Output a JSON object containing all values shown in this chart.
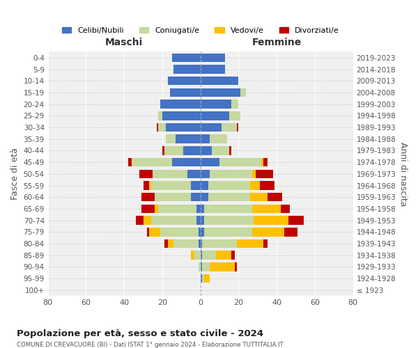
{
  "age_groups": [
    "100+",
    "95-99",
    "90-94",
    "85-89",
    "80-84",
    "75-79",
    "70-74",
    "65-69",
    "60-64",
    "55-59",
    "50-54",
    "45-49",
    "40-44",
    "35-39",
    "30-34",
    "25-29",
    "20-24",
    "15-19",
    "10-14",
    "5-9",
    "0-4"
  ],
  "birth_years": [
    "≤ 1923",
    "1924-1928",
    "1929-1933",
    "1934-1938",
    "1939-1943",
    "1944-1948",
    "1949-1953",
    "1954-1958",
    "1959-1963",
    "1964-1968",
    "1969-1973",
    "1974-1978",
    "1979-1983",
    "1984-1988",
    "1989-1993",
    "1994-1998",
    "1999-2003",
    "2004-2008",
    "2009-2013",
    "2014-2018",
    "2019-2023"
  ],
  "colors": {
    "celibi": "#4472c4",
    "coniugati": "#c5d9a0",
    "vedovi": "#ffc000",
    "divorziati": "#c00000"
  },
  "maschi": {
    "celibi": [
      0,
      0,
      0,
      0,
      1,
      1,
      2,
      2,
      5,
      5,
      7,
      15,
      9,
      13,
      18,
      20,
      21,
      16,
      17,
      14,
      15
    ],
    "coniugati": [
      0,
      0,
      1,
      3,
      13,
      20,
      24,
      20,
      19,
      21,
      18,
      21,
      10,
      5,
      4,
      2,
      0,
      0,
      0,
      0,
      0
    ],
    "vedovi": [
      0,
      0,
      0,
      2,
      3,
      6,
      4,
      2,
      0,
      1,
      0,
      0,
      0,
      0,
      0,
      0,
      0,
      0,
      0,
      0,
      0
    ],
    "divorziati": [
      0,
      0,
      0,
      0,
      2,
      1,
      4,
      7,
      7,
      3,
      7,
      2,
      1,
      0,
      1,
      0,
      0,
      0,
      0,
      0,
      0
    ]
  },
  "femmine": {
    "celibi": [
      0,
      1,
      1,
      1,
      1,
      2,
      2,
      2,
      4,
      4,
      5,
      10,
      6,
      5,
      11,
      15,
      16,
      21,
      20,
      13,
      13
    ],
    "coniugati": [
      0,
      1,
      4,
      7,
      18,
      25,
      26,
      25,
      22,
      22,
      22,
      22,
      9,
      9,
      8,
      6,
      4,
      3,
      0,
      0,
      0
    ],
    "vedovi": [
      0,
      3,
      13,
      8,
      14,
      17,
      18,
      15,
      9,
      5,
      2,
      1,
      0,
      0,
      0,
      0,
      0,
      0,
      0,
      0,
      0
    ],
    "divorziati": [
      0,
      0,
      1,
      2,
      2,
      7,
      8,
      5,
      8,
      8,
      9,
      2,
      1,
      0,
      1,
      0,
      0,
      0,
      0,
      0,
      0
    ]
  },
  "title": "Popolazione per età, sesso e stato civile - 2024",
  "subtitle": "COMUNE DI CREVACUORE (BI) - Dati ISTAT 1° gennaio 2024 - Elaborazione TUTTITALIA.IT",
  "xlabel_left": "Maschi",
  "xlabel_right": "Femmine",
  "ylabel_left": "Fasce di età",
  "ylabel_right": "Anni di nascita",
  "xlim": 80,
  "legend_labels": [
    "Celibi/Nubili",
    "Coniugati/e",
    "Vedovi/e",
    "Divorziati/e"
  ],
  "bg_color": "#f0f0f0"
}
